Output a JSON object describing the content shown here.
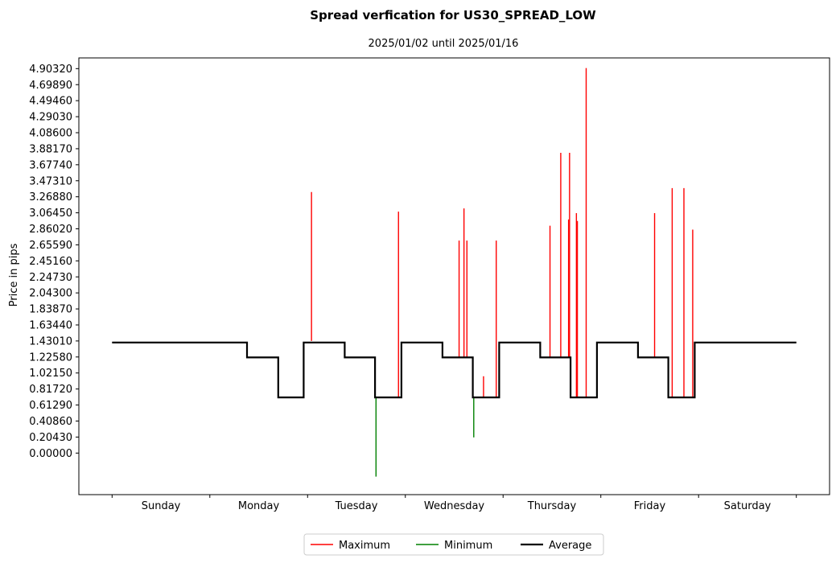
{
  "chart_data": {
    "type": "line",
    "title": "Spread verfication for US30_SPREAD_LOW",
    "subtitle": "2025/01/02 until 2025/01/16",
    "ylabel": "Price in pips",
    "xlabel": "",
    "x_unit": "day of week (0 = Sunday start)",
    "xlim": [
      -0.34,
      7.34
    ],
    "ylim": [
      -0.53,
      5.04
    ],
    "categories": [
      "Sunday",
      "Monday",
      "Tuesday",
      "Wednesday",
      "Thursday",
      "Friday",
      "Saturday"
    ],
    "category_positions": [
      0.5,
      1.5,
      2.5,
      3.5,
      4.5,
      5.5,
      6.5
    ],
    "x_ticks": [
      0,
      1,
      2,
      3,
      4,
      5,
      6,
      7
    ],
    "y_ticks": [
      "0.00000",
      "0.20430",
      "0.40860",
      "0.61290",
      "0.81720",
      "1.02150",
      "1.22580",
      "1.43010",
      "1.63440",
      "1.83870",
      "2.04300",
      "2.24730",
      "2.45160",
      "2.65590",
      "2.86020",
      "3.06450",
      "3.26880",
      "3.47310",
      "3.67740",
      "3.88170",
      "4.08600",
      "4.29030",
      "4.49460",
      "4.69890",
      "4.90320"
    ],
    "legend_position": "bottom-center",
    "grid": false,
    "series": [
      {
        "name": "Maximum",
        "color": "#ff0000",
        "kind": "spikes",
        "points": [
          [
            2.04,
            1.43,
            3.33
          ],
          [
            2.93,
            0.72,
            3.08
          ],
          [
            3.55,
            1.22,
            2.71
          ],
          [
            3.6,
            1.22,
            3.12
          ],
          [
            3.63,
            1.22,
            2.71
          ],
          [
            3.8,
            0.72,
            0.98
          ],
          [
            3.93,
            0.72,
            2.71
          ],
          [
            4.48,
            1.22,
            2.9
          ],
          [
            4.59,
            1.22,
            3.83
          ],
          [
            4.67,
            1.22,
            2.98
          ],
          [
            4.68,
            1.22,
            3.83
          ],
          [
            4.75,
            0.72,
            3.06
          ],
          [
            4.76,
            0.72,
            2.96
          ],
          [
            4.85,
            0.72,
            4.91
          ],
          [
            5.55,
            1.22,
            3.06
          ],
          [
            5.73,
            0.72,
            3.38
          ],
          [
            5.85,
            0.72,
            3.38
          ],
          [
            5.94,
            0.72,
            2.85
          ]
        ]
      },
      {
        "name": "Minimum",
        "color": "#008000",
        "kind": "spikes",
        "points": [
          [
            2.7,
            0.72,
            -0.3
          ],
          [
            3.7,
            0.72,
            0.2
          ]
        ]
      },
      {
        "name": "Average",
        "color": "#000000",
        "kind": "step",
        "points": [
          [
            0.0,
            1.41
          ],
          [
            1.38,
            1.41
          ],
          [
            1.38,
            1.22
          ],
          [
            1.7,
            1.22
          ],
          [
            1.7,
            0.71
          ],
          [
            1.96,
            0.71
          ],
          [
            1.96,
            1.41
          ],
          [
            2.38,
            1.41
          ],
          [
            2.38,
            1.22
          ],
          [
            2.69,
            1.22
          ],
          [
            2.69,
            0.71
          ],
          [
            2.96,
            0.71
          ],
          [
            2.96,
            1.41
          ],
          [
            3.38,
            1.41
          ],
          [
            3.38,
            1.22
          ],
          [
            3.69,
            1.22
          ],
          [
            3.69,
            0.71
          ],
          [
            3.96,
            0.71
          ],
          [
            3.96,
            1.41
          ],
          [
            4.38,
            1.41
          ],
          [
            4.38,
            1.22
          ],
          [
            4.69,
            1.22
          ],
          [
            4.69,
            0.71
          ],
          [
            4.96,
            0.71
          ],
          [
            4.96,
            1.41
          ],
          [
            5.38,
            1.41
          ],
          [
            5.38,
            1.22
          ],
          [
            5.69,
            1.22
          ],
          [
            5.69,
            0.71
          ],
          [
            5.96,
            0.71
          ],
          [
            5.96,
            1.41
          ],
          [
            7.0,
            1.41
          ]
        ]
      }
    ]
  }
}
